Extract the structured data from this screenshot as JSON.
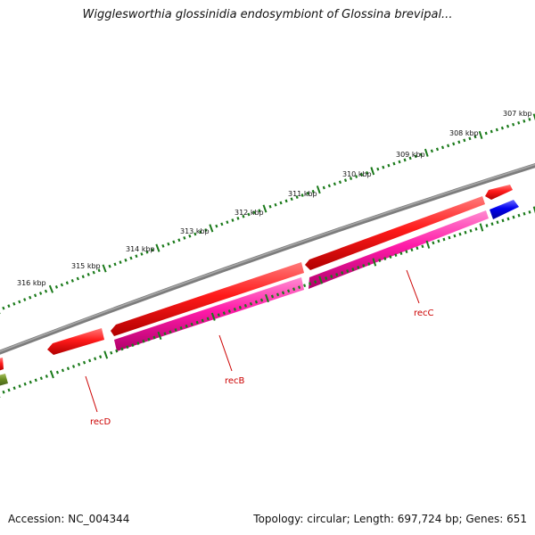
{
  "title": "Wigglesworthia glossinidia endosymbiont of Glossina brevipal...",
  "footer": {
    "accession": "Accession: NC_004344",
    "topology": "Topology: circular; Length: 697,724 bp; Genes: 651"
  },
  "kbp_labels": [
    "307 kbp",
    "308 kbp",
    "309 kbp",
    "310 kbp",
    "311 kbp",
    "312 kbp",
    "313 kbp",
    "314 kbp",
    "315 kbp",
    "316 kbp"
  ],
  "gene_labels": [
    "recC",
    "recB",
    "recD"
  ],
  "colors": {
    "backbone": "#808080",
    "tick": "#1a7a1a",
    "forward_cds": "#ff0000",
    "reverse_magenta": "#ff1aa8",
    "reverse_blue": "#0000ee",
    "reverse_olive": "#6b8e23",
    "gene_label": "#cc0000"
  }
}
